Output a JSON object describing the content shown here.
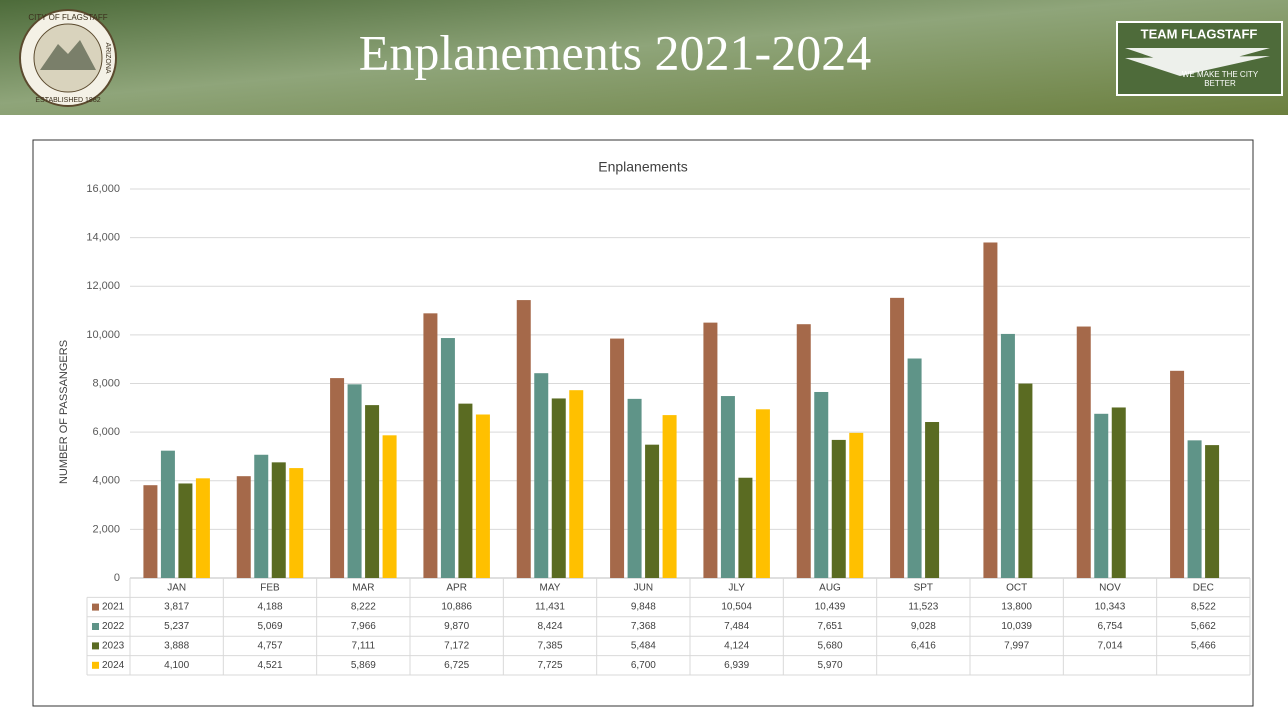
{
  "slide": {
    "title": "Enplanements 2021-2024",
    "seal_top": "CITY OF FLAGSTAFF",
    "seal_right": "ARIZONA",
    "seal_bottom": "ESTABLISHED 1882",
    "logo_title": "TEAM FLAGSTAFF",
    "logo_tagline": "WE MAKE THE CITY BETTER"
  },
  "chart_data": {
    "type": "bar",
    "title": "Enplanements",
    "y_label": "NUMBER OF PASSANGERS",
    "categories": [
      "JAN",
      "FEB",
      "MAR",
      "APR",
      "MAY",
      "JUN",
      "JLY",
      "AUG",
      "SPT",
      "OCT",
      "NOV",
      "DEC"
    ],
    "series": [
      {
        "name": "2021",
        "color": "#a5694a",
        "values": [
          3817,
          4188,
          8222,
          10886,
          11431,
          9848,
          10504,
          10439,
          11523,
          13800,
          10343,
          8522
        ],
        "value_labels": [
          "3,817",
          "4,188",
          "8,222",
          "10,886",
          "11,431",
          "9,848",
          "10,504",
          "10,439",
          "11,523",
          "13,800",
          "10,343",
          "8,522"
        ]
      },
      {
        "name": "2022",
        "color": "#5f9488",
        "values": [
          5237,
          5069,
          7966,
          9870,
          8424,
          7368,
          7484,
          7651,
          9028,
          10039,
          6754,
          5662
        ],
        "value_labels": [
          "5,237",
          "5,069",
          "7,966",
          "9,870",
          "8,424",
          "7,368",
          "7,484",
          "7,651",
          "9,028",
          "10,039",
          "6,754",
          "5,662"
        ]
      },
      {
        "name": "2023",
        "color": "#5a6b22",
        "values": [
          3888,
          4757,
          7111,
          7172,
          7385,
          5484,
          4124,
          5680,
          6416,
          7997,
          7014,
          5466
        ],
        "value_labels": [
          "3,888",
          "4,757",
          "7,111",
          "7,172",
          "7,385",
          "5,484",
          "4,124",
          "5,680",
          "6,416",
          "7,997",
          "7,014",
          "5,466"
        ]
      },
      {
        "name": "2024",
        "color": "#ffc000",
        "values": [
          4100,
          4521,
          5869,
          6725,
          7725,
          6700,
          6939,
          5970,
          null,
          null,
          null,
          null
        ],
        "value_labels": [
          "4,100",
          "4,521",
          "5,869",
          "6,725",
          "7,725",
          "6,700",
          "6,939",
          "5,970",
          null,
          null,
          null,
          null
        ]
      }
    ],
    "ylim": [
      0,
      16000
    ],
    "yticks": [
      0,
      {
        "value": 2000,
        "label": "2,000"
      },
      {
        "value": 4000,
        "label": "4,000"
      },
      {
        "value": 6000,
        "label": "6,000"
      },
      {
        "value": 8000,
        "label": "8,000"
      },
      {
        "value": 10000,
        "label": "10,000"
      },
      {
        "value": 12000,
        "label": "12,000"
      },
      {
        "value": 14000,
        "label": "14,000"
      },
      {
        "value": 16000,
        "label": "16,000"
      }
    ],
    "grid": true
  }
}
